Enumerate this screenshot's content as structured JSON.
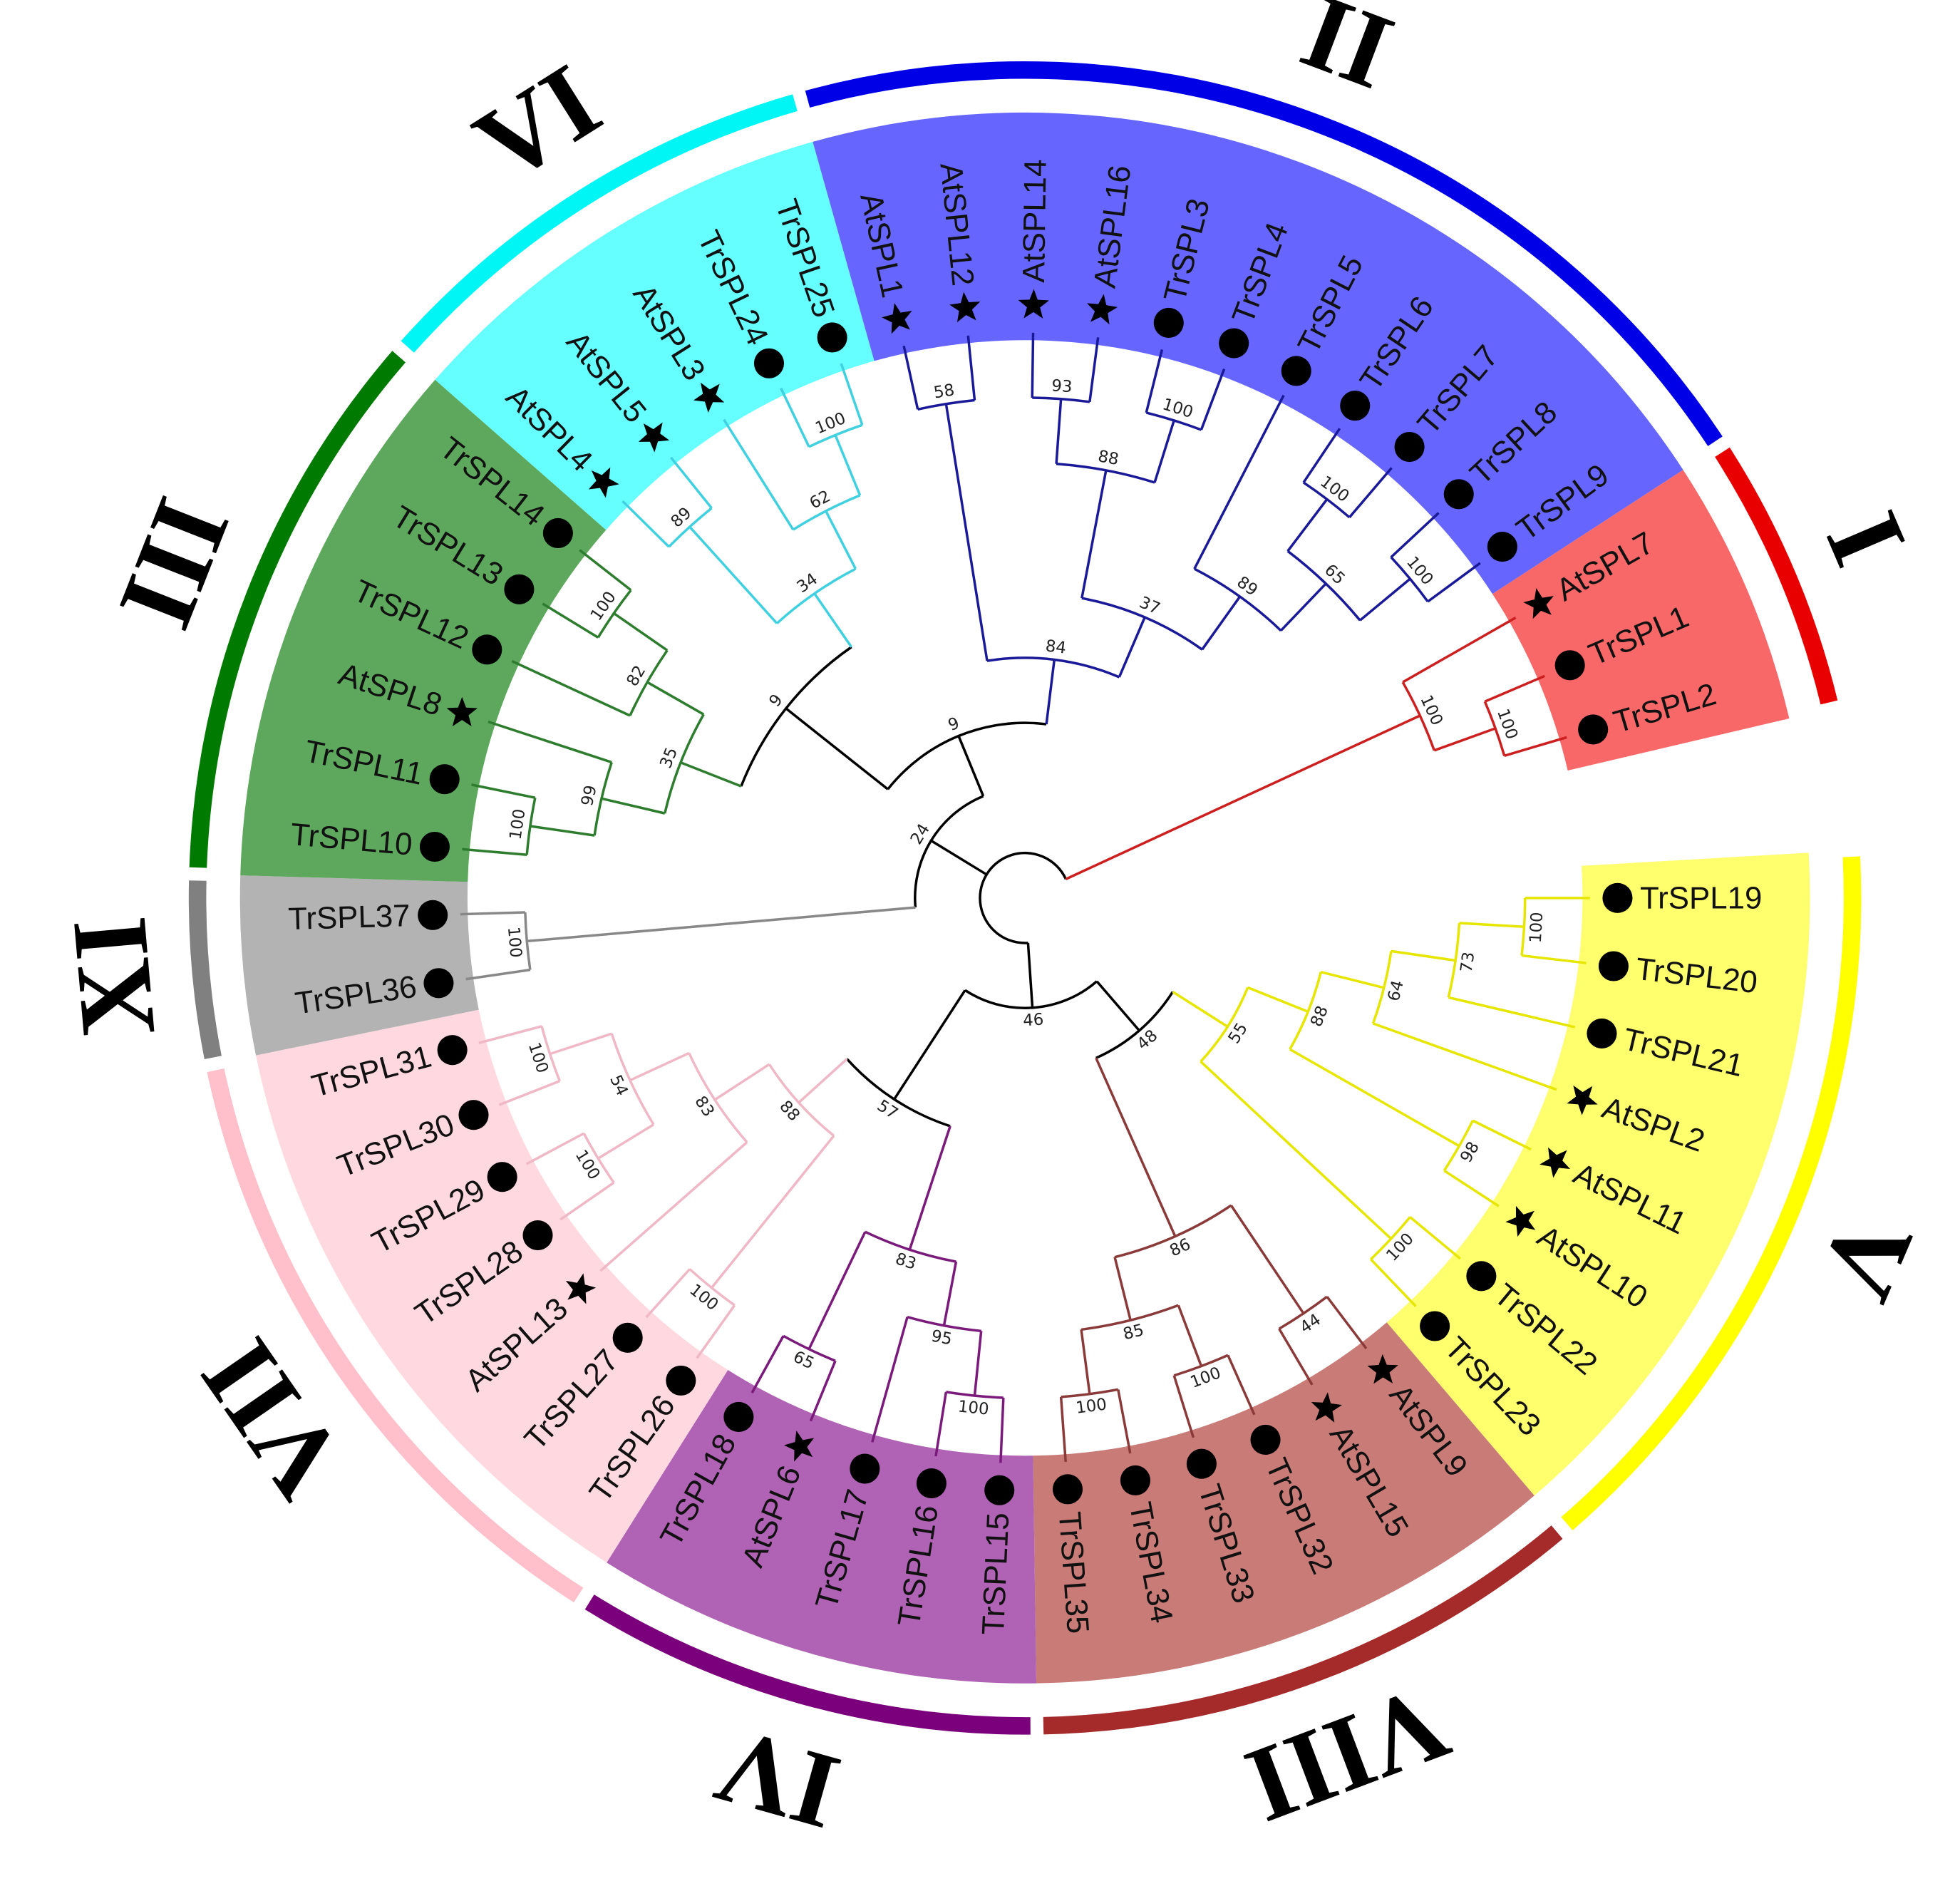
{
  "tree": {
    "children": [
      {
        "support": 46,
        "children": [
          {
            "support": 48,
            "children": [
              {
                "clade": "V",
                "color": "#ffff00",
                "shade": "#ffff6e",
                "branch": "#e6e600",
                "support": 55,
                "children": [
                  {
                    "support": 88,
                    "children": [
                      {
                        "support": 64,
                        "children": [
                          {
                            "support": 73,
                            "children": [
                              {
                                "support": 100,
                                "children": [
                                  {
                                    "label": "TrSPL19",
                                    "marker": "circle"
                                  },
                                  {
                                    "label": "TrSPL20",
                                    "marker": "circle"
                                  }
                                ]
                              },
                              {
                                "label": "TrSPL21",
                                "marker": "circle"
                              }
                            ]
                          },
                          {
                            "label": "AtSPL2",
                            "marker": "star"
                          }
                        ]
                      },
                      {
                        "support": 98,
                        "children": [
                          {
                            "label": "AtSPL11",
                            "marker": "star"
                          },
                          {
                            "label": "AtSPL10",
                            "marker": "star"
                          }
                        ]
                      }
                    ]
                  },
                  {
                    "support": 100,
                    "children": [
                      {
                        "label": "TrSPL22",
                        "marker": "circle"
                      },
                      {
                        "label": "TrSPL23",
                        "marker": "circle"
                      }
                    ]
                  }
                ]
              },
              {
                "clade": "VIII",
                "color": "#a52a2a",
                "shade": "#c97b77",
                "branch": "#8b3a3a",
                "support": 86,
                "children": [
                  {
                    "support": 44,
                    "children": [
                      {
                        "label": "AtSPL9",
                        "marker": "star"
                      },
                      {
                        "label": "AtSPL15",
                        "marker": "star"
                      }
                    ]
                  },
                  {
                    "support": 85,
                    "children": [
                      {
                        "support": 100,
                        "children": [
                          {
                            "label": "TrSPL32",
                            "marker": "circle"
                          },
                          {
                            "label": "TrSPL33",
                            "marker": "circle"
                          }
                        ]
                      },
                      {
                        "support": 100,
                        "children": [
                          {
                            "label": "TrSPL34",
                            "marker": "circle"
                          },
                          {
                            "label": "TrSPL35",
                            "marker": "circle"
                          }
                        ]
                      }
                    ]
                  }
                ]
              }
            ]
          },
          {
            "support": 57,
            "children": [
              {
                "clade": "IV",
                "color": "#7b007b",
                "shade": "#b062b4",
                "branch": "#7a1a7a",
                "support": 83,
                "children": [
                  {
                    "support": 95,
                    "children": [
                      {
                        "support": 100,
                        "children": [
                          {
                            "label": "TrSPL15",
                            "marker": "circle"
                          },
                          {
                            "label": "TrSPL16",
                            "marker": "circle"
                          }
                        ]
                      },
                      {
                        "label": "TrSPL17",
                        "marker": "circle"
                      }
                    ]
                  },
                  {
                    "support": 65,
                    "children": [
                      {
                        "label": "AtSPL6",
                        "marker": "star"
                      },
                      {
                        "label": "TrSPL18",
                        "marker": "circle"
                      }
                    ]
                  }
                ]
              },
              {
                "clade": "VII",
                "color": "#ffc0cb",
                "shade": "#ffd9df",
                "branch": "#f0b8c6",
                "support": 88,
                "children": [
                  {
                    "support": 100,
                    "children": [
                      {
                        "label": "TrSPL26",
                        "marker": "circle"
                      },
                      {
                        "label": "TrSPL27",
                        "marker": "circle"
                      }
                    ]
                  },
                  {
                    "support": 83,
                    "children": [
                      {
                        "label": "AtSPL13",
                        "marker": "star"
                      },
                      {
                        "support": 54,
                        "children": [
                          {
                            "support": 100,
                            "children": [
                              {
                                "label": "TrSPL28",
                                "marker": "circle"
                              },
                              {
                                "label": "TrSPL29",
                                "marker": "circle"
                              }
                            ]
                          },
                          {
                            "support": 100,
                            "children": [
                              {
                                "label": "TrSPL30",
                                "marker": "circle"
                              },
                              {
                                "label": "TrSPL31",
                                "marker": "circle"
                              }
                            ]
                          }
                        ]
                      }
                    ]
                  }
                ]
              }
            ]
          }
        ]
      },
      {
        "support": 24,
        "children": [
          {
            "clade": "XI",
            "color": "#808080",
            "shade": "#b3b3b3",
            "branch": "#888888",
            "support": 100,
            "children": [
              {
                "label": "TrSPL36",
                "marker": "circle"
              },
              {
                "label": "TrSPL37",
                "marker": "circle"
              }
            ]
          },
          {
            "support": 9,
            "children": [
              {
                "support": 9,
                "children": [
                  {
                    "clade": "III",
                    "color": "#007a00",
                    "shade": "#5ea85e",
                    "branch": "#2e7d2e",
                    "support": 35,
                    "children": [
                      {
                        "support": 99,
                        "children": [
                          {
                            "support": 100,
                            "children": [
                              {
                                "label": "TrSPL10",
                                "marker": "circle"
                              },
                              {
                                "label": "TrSPL11",
                                "marker": "circle"
                              }
                            ]
                          },
                          {
                            "label": "AtSPL8",
                            "marker": "star"
                          }
                        ]
                      },
                      {
                        "support": 82,
                        "children": [
                          {
                            "label": "TrSPL12",
                            "marker": "circle"
                          },
                          {
                            "support": 100,
                            "children": [
                              {
                                "label": "TrSPL13",
                                "marker": "circle"
                              },
                              {
                                "label": "TrSPL14",
                                "marker": "circle"
                              }
                            ]
                          }
                        ]
                      }
                    ]
                  },
                  {
                    "clade": "VI",
                    "color": "#00f5f5",
                    "shade": "#66ffff",
                    "branch": "#40d0e0",
                    "support": 34,
                    "children": [
                      {
                        "support": 89,
                        "children": [
                          {
                            "label": "AtSPL4",
                            "marker": "star"
                          },
                          {
                            "label": "AtSPL5",
                            "marker": "star"
                          }
                        ]
                      },
                      {
                        "support": 62,
                        "children": [
                          {
                            "label": "AtSPL3",
                            "marker": "star"
                          },
                          {
                            "support": 100,
                            "children": [
                              {
                                "label": "TrSPL24",
                                "marker": "circle"
                              },
                              {
                                "label": "TrSPL25",
                                "marker": "circle"
                              }
                            ]
                          }
                        ]
                      }
                    ]
                  }
                ]
              },
              {
                "clade": "II",
                "color": "#0000e6",
                "shade": "#6666ff",
                "branch": "#1a1a99",
                "support": 84,
                "children": [
                  {
                    "support": 58,
                    "children": [
                      {
                        "label": "AtSPL1",
                        "marker": "star"
                      },
                      {
                        "label": "AtSPL12",
                        "marker": "star"
                      }
                    ]
                  },
                  {
                    "support": 37,
                    "children": [
                      {
                        "support": 88,
                        "children": [
                          {
                            "support": 93,
                            "children": [
                              {
                                "label": "AtSPL14",
                                "marker": "star"
                              },
                              {
                                "label": "AtSPL16",
                                "marker": "star"
                              }
                            ]
                          },
                          {
                            "support": 100,
                            "children": [
                              {
                                "label": "TrSPL3",
                                "marker": "circle"
                              },
                              {
                                "label": "TrSPL4",
                                "marker": "circle"
                              }
                            ]
                          }
                        ]
                      },
                      {
                        "support": 89,
                        "children": [
                          {
                            "label": "TrSPL5",
                            "marker": "circle"
                          },
                          {
                            "support": 65,
                            "children": [
                              {
                                "support": 100,
                                "children": [
                                  {
                                    "label": "TrSPL6",
                                    "marker": "circle"
                                  },
                                  {
                                    "label": "TrSPL7",
                                    "marker": "circle"
                                  }
                                ]
                              },
                              {
                                "support": 100,
                                "children": [
                                  {
                                    "label": "TrSPL8",
                                    "marker": "circle"
                                  },
                                  {
                                    "label": "TrSPL9",
                                    "marker": "circle"
                                  }
                                ]
                              }
                            ]
                          }
                        ]
                      }
                    ]
                  }
                ]
              }
            ]
          }
        ]
      },
      {
        "clade": "I",
        "color": "#e80000",
        "shade": "#f86868",
        "branch": "#cc2020",
        "support": 100,
        "children": [
          {
            "label": "AtSPL7",
            "marker": "star"
          },
          {
            "support": 100,
            "children": [
              {
                "label": "TrSPL1",
                "marker": "circle"
              },
              {
                "label": "TrSPL2",
                "marker": "circle"
              }
            ]
          }
        ]
      }
    ]
  }
}
